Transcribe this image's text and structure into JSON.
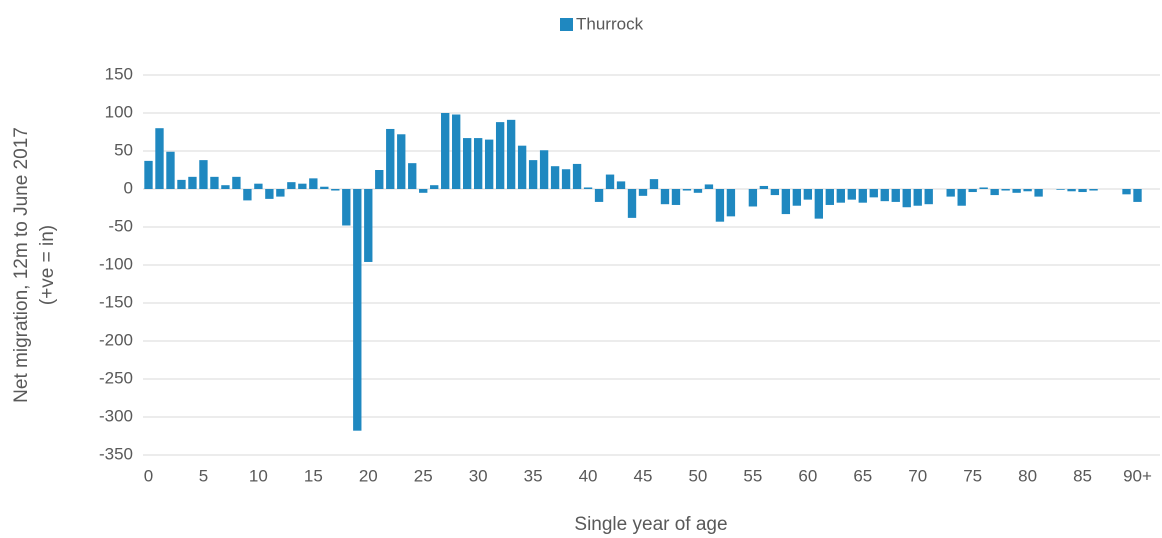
{
  "chart_data": {
    "type": "bar",
    "legend": "Thurrock",
    "x_label": "Single year of age",
    "y_label": [
      "Net migration, 12m to June 2017",
      "(+ve = in)"
    ],
    "color": "#1f88c0",
    "categories": [
      "0",
      null,
      null,
      null,
      null,
      "5",
      null,
      null,
      null,
      null,
      "10",
      null,
      null,
      null,
      null,
      "15",
      null,
      null,
      null,
      null,
      "20",
      null,
      null,
      null,
      null,
      "25",
      null,
      null,
      null,
      null,
      "30",
      null,
      null,
      null,
      null,
      "35",
      null,
      null,
      null,
      null,
      "40",
      null,
      null,
      null,
      null,
      "45",
      null,
      null,
      null,
      null,
      "50",
      null,
      null,
      null,
      null,
      "55",
      null,
      null,
      null,
      null,
      "60",
      null,
      null,
      null,
      null,
      "65",
      null,
      null,
      null,
      null,
      "70",
      null,
      null,
      null,
      null,
      "75",
      null,
      null,
      null,
      null,
      "80",
      null,
      null,
      null,
      null,
      "85",
      null,
      null,
      null,
      null,
      "90+"
    ],
    "values": [
      37,
      80,
      49,
      12,
      16,
      38,
      16,
      5,
      16,
      -15,
      7,
      -13,
      -10,
      9,
      7,
      14,
      3,
      -2,
      -48,
      -318,
      -96,
      25,
      79,
      72,
      34,
      -5,
      5,
      100,
      98,
      67,
      67,
      65,
      88,
      91,
      57,
      38,
      51,
      30,
      26,
      33,
      2,
      -17,
      19,
      10,
      -38,
      -9,
      13,
      -20,
      -21,
      -2,
      -5,
      6,
      -43,
      -36,
      0,
      -23,
      4,
      -8,
      -33,
      -22,
      -14,
      -39,
      -21,
      -18,
      -14,
      -18,
      -11,
      -16,
      -17,
      -24,
      -22,
      -20,
      0,
      -10,
      -22,
      -4,
      2,
      -8,
      -2,
      -5,
      -3,
      -10,
      0,
      -1,
      -3,
      -4,
      -2,
      0,
      0,
      -7,
      -17
    ],
    "ylim": [
      -350,
      150
    ],
    "yticks": [
      -350,
      -300,
      -250,
      -200,
      -150,
      -100,
      -50,
      0,
      50,
      100,
      150
    ],
    "grid": true
  }
}
